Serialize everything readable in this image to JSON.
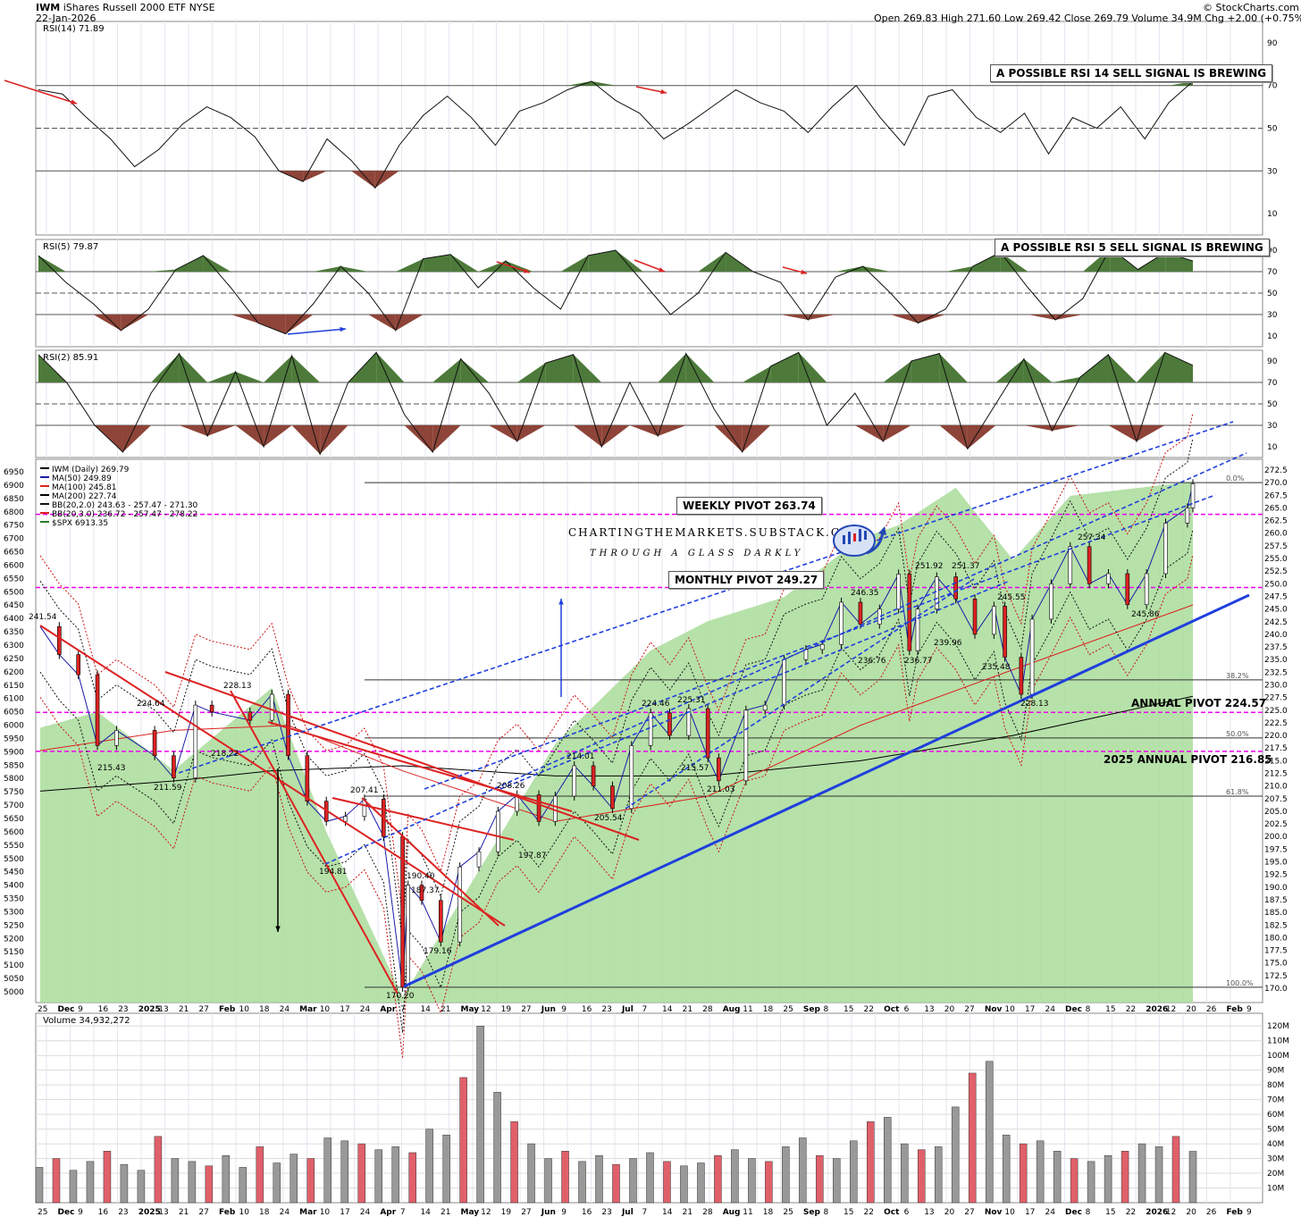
{
  "header": {
    "symbol": "IWM",
    "name": "iShares Russell 2000 ETF",
    "exchange": "NYSE",
    "date": "22-Jan-2026",
    "open_label": "Open",
    "open": "269.83",
    "high_label": "High",
    "high": "271.60",
    "low_label": "Low",
    "low": "269.42",
    "close_label": "Close",
    "close": "269.79",
    "volume_label": "Volume",
    "volume": "34.9M",
    "chg_label": "Chg",
    "chg": "+2.00 (+0.75%)",
    "credit": "© StockCharts.com"
  },
  "colors": {
    "up": "#ffffff",
    "down": "#dd2222",
    "ma50": "#1a1aa8",
    "ma100": "#dd2222",
    "ma200": "#000000",
    "spx_fill": "#a9dc9a",
    "pivot": "#ee00ee",
    "trend_red": "#dd2222",
    "trend_blue": "#1f3fdd",
    "rsi_over": "#4d7a3a",
    "rsi_under": "#8e4438"
  },
  "panels": {
    "rsi14": {
      "label": "RSI(14) 71.89",
      "levels": [
        90,
        70,
        50,
        30,
        10
      ],
      "callout": "A POSSIBLE RSI 14 SELL SIGNAL IS BREWING",
      "last": 71.89
    },
    "rsi5": {
      "label": "RSI(5) 79.87",
      "levels": [
        90,
        70,
        50,
        30,
        10
      ],
      "callout": "A POSSIBLE RSI 5 SELL SIGNAL IS BREWING",
      "last": 79.87
    },
    "rsi2": {
      "label": "RSI(2) 85.91",
      "levels": [
        90,
        70,
        50,
        30,
        10
      ],
      "last": 85.91
    },
    "price": {
      "legend": [
        "IWM (Daily) 269.79",
        "MA(50) 249.89",
        "MA(100) 245.81",
        "MA(200) 227.74",
        "BB(20,2.0) 243.63 - 257.47 - 271.30",
        "BB(20,3.0) 236.72 - 257.47 - 278.22",
        "$SPX 6913.35"
      ],
      "right_ticks": [
        "272.5",
        "270.0",
        "267.5",
        "265.0",
        "262.5",
        "260.0",
        "257.5",
        "255.0",
        "252.5",
        "250.0",
        "247.5",
        "245.0",
        "242.5",
        "240.0",
        "237.5",
        "235.0",
        "232.5",
        "230.0",
        "227.5",
        "225.0",
        "222.5",
        "220.0",
        "217.5",
        "215.0",
        "212.5",
        "210.0",
        "207.5",
        "205.0",
        "202.5",
        "200.0",
        "197.5",
        "195.0",
        "192.5",
        "190.0",
        "187.5",
        "185.0",
        "182.5",
        "180.0",
        "177.5",
        "175.0",
        "172.5",
        "170.0"
      ],
      "left_ticks": [
        "6950",
        "6900",
        "6850",
        "6800",
        "6750",
        "6700",
        "6650",
        "6600",
        "6550",
        "6500",
        "6450",
        "6400",
        "6350",
        "6300",
        "6250",
        "6200",
        "6150",
        "6100",
        "6050",
        "6000",
        "5950",
        "5900",
        "5850",
        "5800",
        "5750",
        "5700",
        "5650",
        "5600",
        "5550",
        "5500",
        "5450",
        "5400",
        "5350",
        "5300",
        "5250",
        "5200",
        "5150",
        "5100",
        "5050",
        "5000"
      ],
      "fib_labels": [
        "0.0%",
        "38.2%",
        "50.0%",
        "61.8%",
        "100.0%"
      ],
      "fib_values": [
        270.0,
        231.0,
        219.5,
        208.0,
        170.2
      ],
      "price_labels": [
        "241.54",
        "224.64",
        "228.13",
        "215.43",
        "211.59",
        "218.22",
        "207.41",
        "194.81",
        "190.40",
        "187.37",
        "179.16",
        "170.20",
        "208.26",
        "214.01",
        "205.54",
        "197.87",
        "224.46",
        "225.31",
        "215.57",
        "211.03",
        "246.35",
        "251.92",
        "251.37",
        "236.76",
        "236.77",
        "239.96",
        "245.55",
        "235.48",
        "228.13",
        "257.34",
        "245.86"
      ],
      "callouts": {
        "weekly": "WEEKLY PIVOT 263.74",
        "monthly": "MONTHLY PIVOT 249.27",
        "annual": "ANNUAL PIVOT 224.57",
        "annual2025": "2025 ANNUAL PIVOT 216.85"
      },
      "watermark1": "CHARTINGTHEMARKETS.SUBSTACK.COM",
      "watermark2": "THROUGH A GLASS DARKLY"
    },
    "volume": {
      "label": "Volume 34,932,272",
      "ticks": [
        "120M",
        "110M",
        "100M",
        "90M",
        "80M",
        "70M",
        "60M",
        "50M",
        "40M",
        "30M",
        "20M",
        "10M"
      ]
    }
  },
  "x_axis": [
    "25",
    "Dec",
    "9",
    "16",
    "23",
    "2025",
    "13",
    "21",
    "27",
    "Feb",
    "10",
    "18",
    "24",
    "Mar",
    "10",
    "17",
    "24",
    "Apr",
    "7",
    "14",
    "21",
    "May",
    "12",
    "19",
    "27",
    "Jun",
    "9",
    "16",
    "23",
    "Jul",
    "7",
    "14",
    "21",
    "28",
    "Aug",
    "11",
    "18",
    "25",
    "Sep",
    "8",
    "15",
    "22",
    "Oct",
    "6",
    "13",
    "20",
    "27",
    "Nov",
    "10",
    "17",
    "24",
    "Dec",
    "8",
    "15",
    "22",
    "2026",
    "12",
    "20",
    "26",
    "Feb",
    "9"
  ],
  "chart_data": {
    "type": "line",
    "title": "IWM iShares Russell 2000 ETF NYSE",
    "x_range": [
      "25-Nov-2024",
      "22-Jan-2026"
    ],
    "series": [
      {
        "name": "IWM (Daily)",
        "points": [
          [
            "25-Nov-2024",
            241.54
          ],
          [
            "2-Dec-2024",
            236
          ],
          [
            "9-Dec-2024",
            232
          ],
          [
            "16-Dec-2024",
            218
          ],
          [
            "23-Dec-2024",
            221
          ],
          [
            "6-Jan-2025",
            216
          ],
          [
            "13-Jan-2025",
            211.59
          ],
          [
            "21-Jan-2025",
            226
          ],
          [
            "27-Jan-2025",
            224.64
          ],
          [
            "10-Feb-2025",
            223
          ],
          [
            "18-Feb-2025",
            228.13
          ],
          [
            "24-Feb-2025",
            216
          ],
          [
            "3-Mar-2025",
            207
          ],
          [
            "10-Mar-2025",
            203
          ],
          [
            "17-Mar-2025",
            204
          ],
          [
            "24-Mar-2025",
            207.41
          ],
          [
            "31-Mar-2025",
            200
          ],
          [
            "7-Apr-2025",
            170.2
          ],
          [
            "9-Apr-2025",
            190.4
          ],
          [
            "14-Apr-2025",
            187.37
          ],
          [
            "21-Apr-2025",
            179.16
          ],
          [
            "28-Apr-2025",
            194
          ],
          [
            "5-May-2025",
            197
          ],
          [
            "12-May-2025",
            205
          ],
          [
            "19-May-2025",
            208.26
          ],
          [
            "27-May-2025",
            203
          ],
          [
            "2-Jun-2025",
            208
          ],
          [
            "9-Jun-2025",
            214.01
          ],
          [
            "16-Jun-2025",
            210
          ],
          [
            "23-Jun-2025",
            205.54
          ],
          [
            "30-Jun-2025",
            218
          ],
          [
            "7-Jul-2025",
            224.46
          ],
          [
            "14-Jul-2025",
            220
          ],
          [
            "21-Jul-2025",
            225.31
          ],
          [
            "28-Jul-2025",
            215.57
          ],
          [
            "1-Aug-2025",
            211.03
          ],
          [
            "11-Aug-2025",
            225
          ],
          [
            "18-Aug-2025",
            226
          ],
          [
            "25-Aug-2025",
            235
          ],
          [
            "2-Sep-2025",
            237
          ],
          [
            "8-Sep-2025",
            238
          ],
          [
            "15-Sep-2025",
            246.35
          ],
          [
            "22-Sep-2025",
            242
          ],
          [
            "29-Sep-2025",
            245
          ],
          [
            "6-Oct-2025",
            251.92
          ],
          [
            "10-Oct-2025",
            236.77
          ],
          [
            "13-Oct-2025",
            245
          ],
          [
            "20-Oct-2025",
            251.37
          ],
          [
            "27-Oct-2025",
            247
          ],
          [
            "3-Nov-2025",
            240
          ],
          [
            "10-Nov-2025",
            245.55
          ],
          [
            "14-Nov-2025",
            235.48
          ],
          [
            "20-Nov-2025",
            228.13
          ],
          [
            "24-Nov-2025",
            243
          ],
          [
            "1-Dec-2025",
            250
          ],
          [
            "8-Dec-2025",
            257.34
          ],
          [
            "15-Dec-2025",
            250
          ],
          [
            "22-Dec-2025",
            252
          ],
          [
            "29-Dec-2025",
            245.86
          ],
          [
            "5-Jan-2026",
            252
          ],
          [
            "12-Jan-2026",
            262
          ],
          [
            "20-Jan-2026",
            265
          ],
          [
            "22-Jan-2026",
            269.79
          ]
        ]
      },
      {
        "name": "$SPX",
        "points": [
          [
            "25-Nov-2024",
            5990
          ],
          [
            "16-Dec-2024",
            6050
          ],
          [
            "13-Jan-2025",
            5830
          ],
          [
            "18-Feb-2025",
            6140
          ],
          [
            "10-Mar-2025",
            5600
          ],
          [
            "7-Apr-2025",
            4980
          ],
          [
            "2-Jun-2025",
            5930
          ],
          [
            "7-Jul-2025",
            6280
          ],
          [
            "28-Jul-2025",
            6390
          ],
          [
            "25-Aug-2025",
            6480
          ],
          [
            "22-Sep-2025",
            6700
          ],
          [
            "6-Oct-2025",
            6750
          ],
          [
            "27-Oct-2025",
            6890
          ],
          [
            "17-Nov-2025",
            6620
          ],
          [
            "8-Dec-2025",
            6860
          ],
          [
            "22-Jan-2026",
            6913.35
          ]
        ]
      },
      {
        "name": "MA(200)",
        "points": [
          [
            "25-Nov-2024",
            209
          ],
          [
            "13-Jan-2025",
            211
          ],
          [
            "18-Feb-2025",
            213
          ],
          [
            "7-Apr-2025",
            214
          ],
          [
            "2-Jun-2025",
            212
          ],
          [
            "28-Jul-2025",
            212
          ],
          [
            "22-Sep-2025",
            215
          ],
          [
            "17-Nov-2025",
            220
          ],
          [
            "22-Jan-2026",
            227.74
          ]
        ]
      },
      {
        "name": "MA(100)",
        "points": [
          [
            "25-Nov-2024",
            217
          ],
          [
            "13-Jan-2025",
            221
          ],
          [
            "24-Feb-2025",
            222
          ],
          [
            "7-Apr-2025",
            213
          ],
          [
            "2-Jun-2025",
            203
          ],
          [
            "28-Jul-2025",
            208
          ],
          [
            "22-Sep-2025",
            222
          ],
          [
            "17-Nov-2025",
            233
          ],
          [
            "22-Jan-2026",
            245.81
          ]
        ]
      }
    ],
    "rsi14": [
      68,
      66,
      55,
      45,
      32,
      40,
      52,
      60,
      55,
      46,
      30,
      25,
      45,
      35,
      22,
      42,
      56,
      65,
      55,
      42,
      58,
      62,
      68,
      72,
      63,
      57,
      45,
      52,
      60,
      68,
      62,
      58,
      48,
      60,
      70,
      55,
      42,
      65,
      68,
      55,
      48,
      57,
      38,
      55,
      50,
      60,
      45,
      62,
      71.89
    ],
    "rsi5": [
      85,
      60,
      40,
      15,
      35,
      72,
      85,
      55,
      22,
      12,
      40,
      75,
      50,
      15,
      82,
      86,
      55,
      80,
      55,
      35,
      85,
      90,
      60,
      30,
      50,
      88,
      70,
      60,
      25,
      65,
      75,
      50,
      22,
      35,
      75,
      88,
      55,
      25,
      45,
      92,
      72,
      88,
      79.87
    ],
    "rsi2": [
      96,
      70,
      30,
      5,
      60,
      97,
      20,
      80,
      10,
      95,
      3,
      70,
      98,
      40,
      5,
      92,
      60,
      15,
      88,
      96,
      10,
      70,
      20,
      97,
      45,
      5,
      85,
      98,
      30,
      60,
      15,
      90,
      97,
      8,
      50,
      92,
      25,
      75,
      96,
      15,
      98,
      85.91
    ],
    "volume_M": [
      24,
      30,
      22,
      28,
      35,
      26,
      22,
      45,
      30,
      28,
      25,
      32,
      24,
      38,
      27,
      33,
      30,
      44,
      42,
      40,
      36,
      38,
      34,
      50,
      46,
      85,
      120,
      75,
      55,
      40,
      30,
      35,
      28,
      32,
      26,
      30,
      34,
      28,
      25,
      27,
      32,
      36,
      30,
      28,
      38,
      44,
      32,
      30,
      42,
      55,
      58,
      40,
      36,
      38,
      65,
      88,
      96,
      46,
      40,
      42,
      35,
      30,
      28,
      32,
      35,
      40,
      38,
      45,
      34.9
    ],
    "right_axis_range": [
      170.0,
      272.5
    ],
    "left_axis_range": [
      5000,
      6950
    ]
  }
}
